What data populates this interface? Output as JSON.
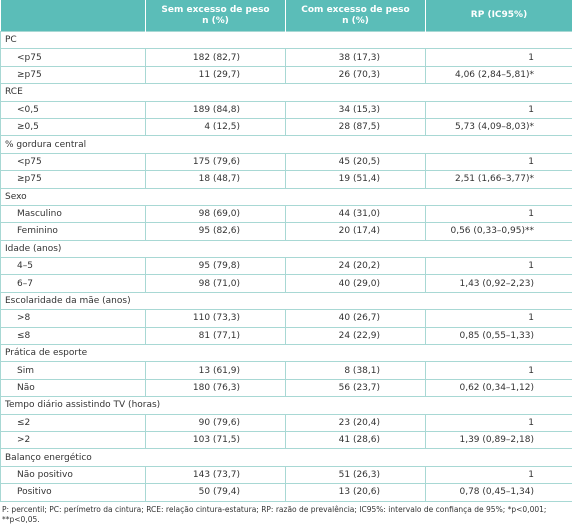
{
  "table": {
    "columns": [
      [
        "Sem excesso de peso",
        "n (%)"
      ],
      [
        "Com excesso de peso",
        "n (%)"
      ],
      [
        "RP (IC95%)"
      ]
    ],
    "sections": [
      {
        "label": "PC",
        "rows": [
          [
            "<p75",
            "182 (82,7)",
            "38 (17,3)",
            "1"
          ],
          [
            "≥p75",
            "11 (29,7)",
            "26 (70,3)",
            "4,06 (2,84–5,81)*"
          ]
        ]
      },
      {
        "label": "RCE",
        "rows": [
          [
            "<0,5",
            "189 (84,8)",
            "34 (15,3)",
            "1"
          ],
          [
            "≥0,5",
            "4 (12,5)",
            "28 (87,5)",
            "5,73 (4,09–8,03)*"
          ]
        ]
      },
      {
        "label": "% gordura central",
        "rows": [
          [
            "<p75",
            "175 (79,6)",
            "45 (20,5)",
            "1"
          ],
          [
            "≥p75",
            "18 (48,7)",
            "19 (51,4)",
            "2,51 (1,66–3,77)*"
          ]
        ]
      },
      {
        "label": "Sexo",
        "rows": [
          [
            "Masculino",
            "98 (69,0)",
            "44 (31,0)",
            "1"
          ],
          [
            "Feminino",
            "95 (82,6)",
            "20 (17,4)",
            "0,56 (0,33–0,95)**"
          ]
        ]
      },
      {
        "label": "Idade (anos)",
        "rows": [
          [
            "4–5",
            "95 (79,8)",
            "24 (20,2)",
            "1"
          ],
          [
            "6–7",
            "98 (71,0)",
            "40 (29,0)",
            "1,43 (0,92–2,23)"
          ]
        ]
      },
      {
        "label": "Escolaridade da mãe (anos)",
        "rows": [
          [
            ">8",
            "110 (73,3)",
            "40 (26,7)",
            "1"
          ],
          [
            "≤8",
            "81 (77,1)",
            "24 (22,9)",
            "0,85 (0,55–1,33)"
          ]
        ]
      },
      {
        "label": "Prática de esporte",
        "rows": [
          [
            "Sim",
            "13 (61,9)",
            "8 (38,1)",
            "1"
          ],
          [
            "Não",
            "180 (76,3)",
            "56 (23,7)",
            "0,62 (0,34–1,12)"
          ]
        ]
      },
      {
        "label": "Tempo diário assistindo TV (horas)",
        "rows": [
          [
            "≤2",
            "90 (79,6)",
            "23 (20,4)",
            "1"
          ],
          [
            ">2",
            "103 (71,5)",
            "41 (28,6)",
            "1,39 (0,89–2,18)"
          ]
        ]
      },
      {
        "label": "Balanço energético",
        "rows": [
          [
            "Não positivo",
            "143 (73,7)",
            "51 (26,3)",
            "1"
          ],
          [
            "Positivo",
            "50 (79,4)",
            "13 (20,6)",
            "0,78 (0,45–1,34)"
          ]
        ]
      }
    ],
    "footnote": "P: percentil; PC: perímetro da cintura; RCE: relação cintura-estatura; RP: razão de prevalência; IC95%: intervalo de confiança de 95%; *p<0,001; **p<0,05."
  }
}
